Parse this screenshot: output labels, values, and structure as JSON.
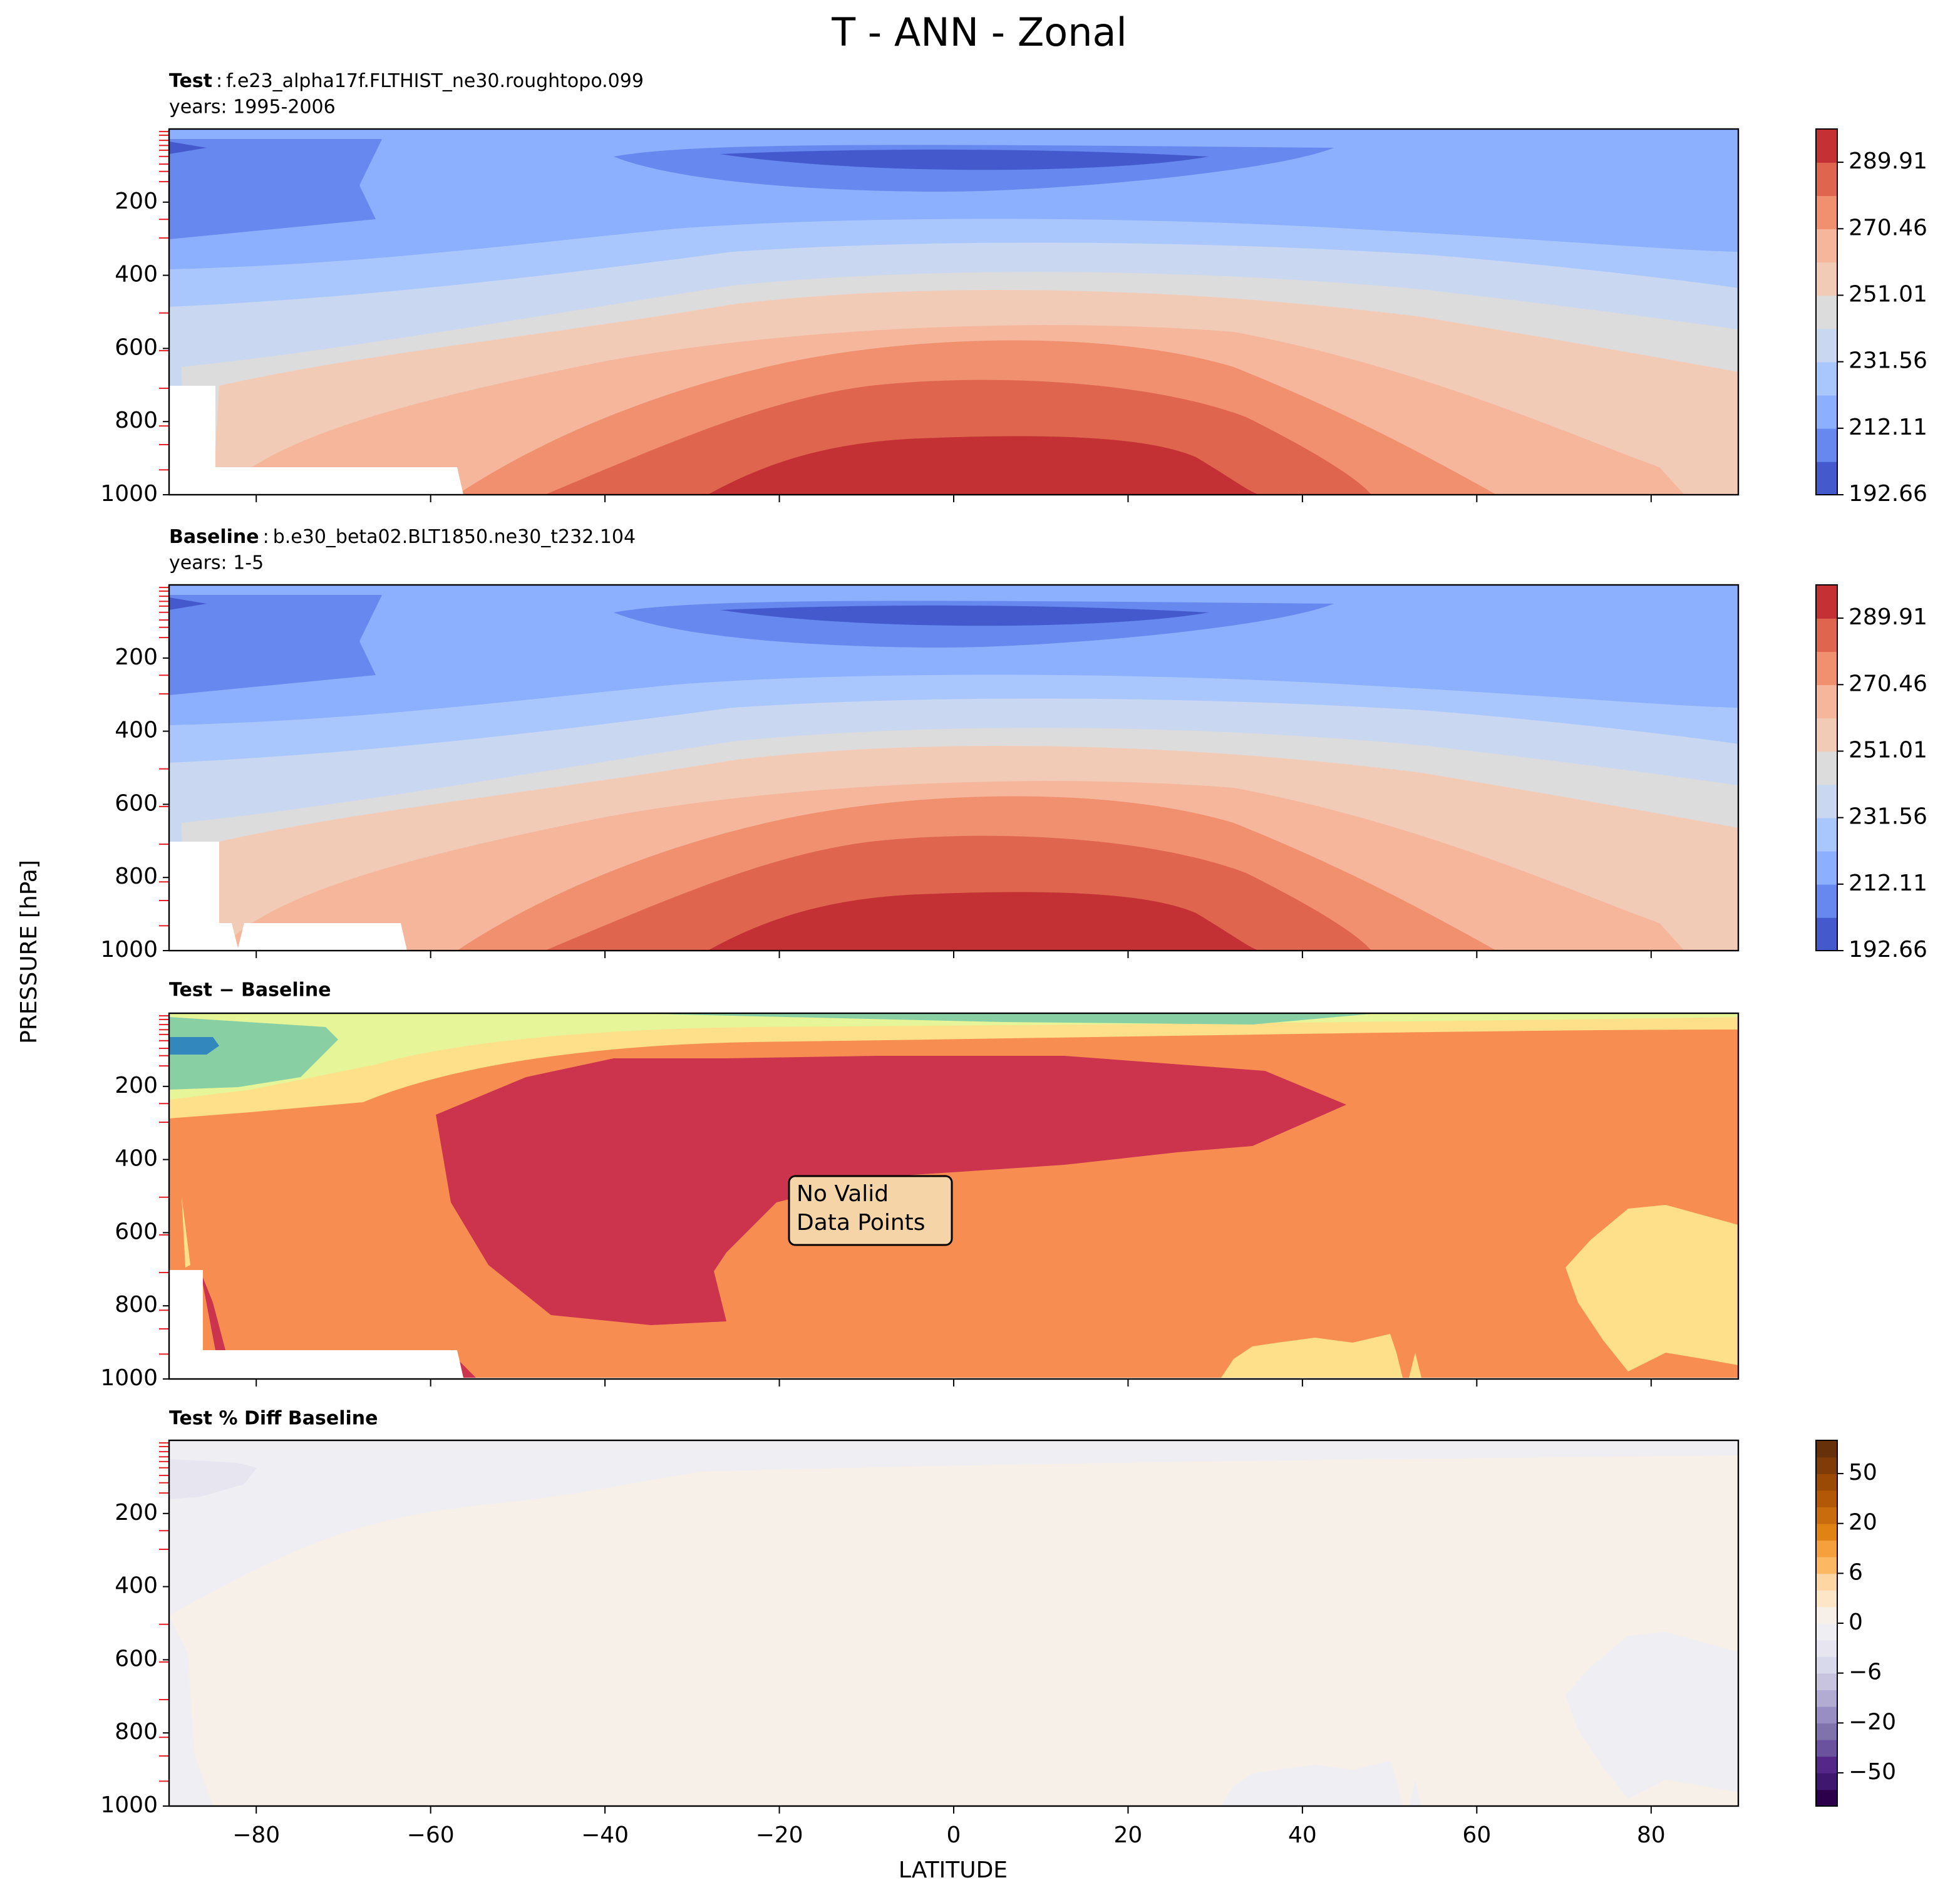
{
  "title": "T - ANN - Zonal",
  "x_label": "LATITUDE",
  "y_label": "PRESSURE [hPa]",
  "pressure_levels": [
    7,
    17,
    31,
    45,
    58,
    75,
    96,
    116,
    144,
    247,
    298,
    503,
    606,
    709,
    812,
    863,
    932
  ],
  "chart_data": [
    {
      "type": "contour",
      "label": "Test",
      "separator": ":",
      "case": "f.e23_alpha17f.FLTHIST_ne30.roughtopo.099",
      "years": "years: 1995-2006",
      "ylim": [
        1000,
        0
      ],
      "yticks": [
        200,
        400,
        600,
        800,
        1000
      ],
      "levels": [
        192.66,
        202.385,
        212.11,
        221.835,
        231.56,
        241.285,
        251.01,
        260.735,
        270.46,
        280.185,
        289.91,
        299.635
      ],
      "level_colors": [
        "#445acc",
        "#6788ee",
        "#8caffe",
        "#aac7fd",
        "#c9d7f0",
        "#dddcdc",
        "#f2cbb7",
        "#f5b69c",
        "#f0906f",
        "#df654e",
        "#c33134"
      ],
      "cbar_ticks": [
        192.66,
        212.11,
        231.56,
        251.01,
        270.46,
        289.91
      ]
    },
    {
      "type": "contour",
      "label": "Baseline",
      "separator": ":",
      "case": "b.e30_beta02.BLT1850.ne30_t232.104",
      "years": "years: 1-5",
      "ylim": [
        1000,
        0
      ],
      "yticks": [
        200,
        400,
        600,
        800,
        1000
      ],
      "levels": [
        192.66,
        202.385,
        212.11,
        221.835,
        231.56,
        241.285,
        251.01,
        260.735,
        270.46,
        280.185,
        289.91,
        299.635
      ],
      "level_colors": [
        "#445acc",
        "#6788ee",
        "#8caffe",
        "#aac7fd",
        "#c9d7f0",
        "#dddcdc",
        "#f2cbb7",
        "#f5b69c",
        "#f0906f",
        "#df654e",
        "#c33134"
      ],
      "cbar_ticks": [
        192.66,
        212.11,
        231.56,
        251.01,
        270.46,
        289.91
      ]
    },
    {
      "type": "contour",
      "title": "Test − Baseline",
      "ylim": [
        1000,
        0
      ],
      "yticks": [
        200,
        400,
        600,
        800,
        1000
      ],
      "annotation": [
        "No Valid",
        "Data Points"
      ]
    },
    {
      "type": "contour",
      "title": "Test % Diff Baseline",
      "ylim": [
        1000,
        0
      ],
      "yticks": [
        200,
        400,
        600,
        800,
        1000
      ],
      "xlim": [
        -90,
        90
      ],
      "xticks": [
        {
          "value": -80,
          "label": "−80"
        },
        {
          "value": -60,
          "label": "−60"
        },
        {
          "value": -40,
          "label": "−40"
        },
        {
          "value": -20,
          "label": "−20"
        },
        0,
        20,
        40,
        60,
        80
      ],
      "levels": [
        -100,
        -75,
        -50,
        -40,
        -30,
        -20,
        -15,
        -10,
        -6,
        -4,
        -2,
        0,
        2,
        4,
        6,
        10,
        15,
        20,
        30,
        40,
        50,
        75,
        100
      ],
      "level_colors": [
        "#2d004b",
        "#40176e",
        "#542788",
        "#6a529f",
        "#8073ac",
        "#998ec3",
        "#b2abd2",
        "#c8c4e0",
        "#d8daeb",
        "#e6e5f0",
        "#eeeef3",
        "#f7f0e8",
        "#fde6c8",
        "#fdd6a3",
        "#fdb863",
        "#f5a03c",
        "#e08214",
        "#c96c0d",
        "#b35806",
        "#9a4a05",
        "#7f3b08",
        "#66300a"
      ],
      "cbar_ticks": [
        {
          "value": -50,
          "label": "−50"
        },
        {
          "value": -20,
          "label": "−20"
        },
        {
          "value": -6,
          "label": "−6"
        },
        0,
        6,
        20,
        50
      ]
    }
  ]
}
